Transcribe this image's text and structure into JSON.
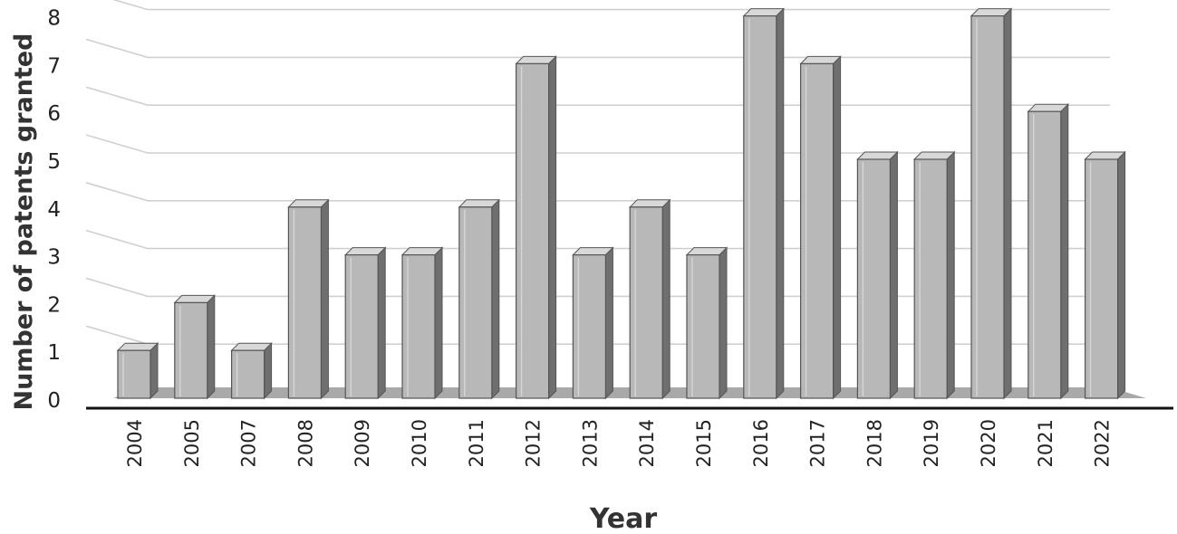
{
  "chart_data": {
    "type": "bar",
    "categories": [
      "2004",
      "2005",
      "2007",
      "2008",
      "2009",
      "2010",
      "2011",
      "2012",
      "2013",
      "2014",
      "2015",
      "2016",
      "2017",
      "2018",
      "2019",
      "2020",
      "2021",
      "2022"
    ],
    "values": [
      1,
      2,
      1,
      4,
      3,
      3,
      4,
      7,
      3,
      4,
      3,
      8,
      7,
      5,
      5,
      8,
      6,
      5
    ],
    "xlabel": "Year",
    "ylabel": "Number of patents granted",
    "ylim": [
      0,
      8
    ],
    "yticks": [
      "0",
      "1",
      "2",
      "3",
      "4",
      "5",
      "6",
      "7",
      "8"
    ],
    "grid": true,
    "style": "3d-column",
    "colors": {
      "bar_front": "#b8b8b8",
      "bar_side": "#6f6f6f",
      "bar_top": "#d8d8d8",
      "floor": "#a9a9a9",
      "grid": "#d0d0d0",
      "axis": "#111111"
    }
  }
}
